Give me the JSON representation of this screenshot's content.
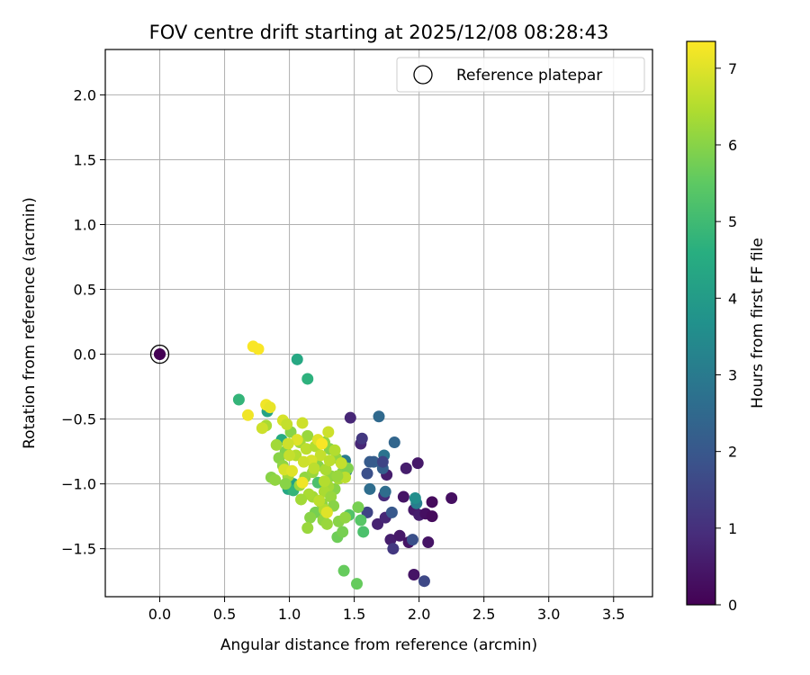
{
  "chart_data": {
    "type": "scatter",
    "title": "FOV centre drift starting at 2025/12/08 08:28:43",
    "xlabel": "Angular distance from reference (arcmin)",
    "ylabel": "Rotation from reference (arcmin)",
    "xlim": [
      -0.42,
      3.8
    ],
    "ylim": [
      -1.87,
      2.35
    ],
    "xticks": [
      0.0,
      0.5,
      1.0,
      1.5,
      2.0,
      2.5,
      3.0,
      3.5
    ],
    "yticks": [
      -1.5,
      -1.0,
      -0.5,
      0.0,
      0.5,
      1.0,
      1.5,
      2.0
    ],
    "grid": true,
    "legend": {
      "position": "top-right",
      "entries": [
        "Reference platepar"
      ]
    },
    "reference_point": {
      "x": 0.0,
      "y": 0.0,
      "hours": 0.0
    },
    "colorbar": {
      "label": "Hours from first FF file",
      "colormap": "viridis",
      "range": [
        0,
        7.35
      ],
      "ticks": [
        0,
        1,
        2,
        3,
        4,
        5,
        6,
        7
      ]
    },
    "points": [
      [
        1.55,
        -0.69,
        0.8
      ],
      [
        1.47,
        -0.49,
        0.8
      ],
      [
        1.75,
        -0.93,
        0.6
      ],
      [
        1.9,
        -0.88,
        0.6
      ],
      [
        1.99,
        -0.84,
        0.5
      ],
      [
        1.88,
        -1.1,
        0.4
      ],
      [
        1.96,
        -1.2,
        0.5
      ],
      [
        2.0,
        -1.24,
        0.6
      ],
      [
        2.05,
        -1.23,
        0.3
      ],
      [
        2.1,
        -1.14,
        0.2
      ],
      [
        2.1,
        -1.25,
        0.2
      ],
      [
        2.25,
        -1.11,
        0.3
      ],
      [
        1.68,
        -1.31,
        0.7
      ],
      [
        1.74,
        -1.26,
        0.8
      ],
      [
        1.78,
        -1.43,
        0.6
      ],
      [
        1.85,
        -1.4,
        0.5
      ],
      [
        1.92,
        -1.45,
        0.4
      ],
      [
        2.07,
        -1.45,
        0.4
      ],
      [
        1.96,
        -1.7,
        0.4
      ],
      [
        1.56,
        -0.65,
        1.2
      ],
      [
        1.73,
        -1.09,
        0.9
      ],
      [
        2.04,
        -1.75,
        1.6
      ],
      [
        1.8,
        -1.5,
        1.2
      ],
      [
        1.95,
        -1.43,
        1.8
      ],
      [
        1.6,
        -0.92,
        1.8
      ],
      [
        1.65,
        -0.83,
        2.2
      ],
      [
        1.62,
        -0.83,
        2.1
      ],
      [
        1.81,
        -0.68,
        2.4
      ],
      [
        1.69,
        -0.48,
        2.5
      ],
      [
        1.72,
        -0.88,
        2.2
      ],
      [
        1.73,
        -0.78,
        2.8
      ],
      [
        1.62,
        -1.04,
        2.6
      ],
      [
        1.74,
        -1.06,
        2.6
      ],
      [
        1.6,
        -1.22,
        1.5
      ],
      [
        1.79,
        -1.22,
        2.0
      ],
      [
        1.72,
        -0.83,
        1.5
      ],
      [
        1.98,
        -1.15,
        3.1
      ],
      [
        1.97,
        -1.11,
        3.6
      ],
      [
        1.43,
        -0.82,
        3.0
      ],
      [
        1.44,
        -0.9,
        2.9
      ],
      [
        0.0,
        0.0,
        0.1
      ],
      [
        1.06,
        -0.04,
        4.4
      ],
      [
        1.14,
        -0.19,
        4.7
      ],
      [
        0.61,
        -0.35,
        4.8
      ],
      [
        0.83,
        -0.44,
        4.2
      ],
      [
        0.94,
        -0.66,
        4.5
      ],
      [
        0.99,
        -1.04,
        4.4
      ],
      [
        1.03,
        -1.0,
        4.2
      ],
      [
        1.03,
        -1.05,
        4.8
      ],
      [
        1.22,
        -0.99,
        5.2
      ],
      [
        1.46,
        -1.24,
        5.3
      ],
      [
        1.57,
        -1.37,
        5.2
      ],
      [
        1.55,
        -1.28,
        5.4
      ],
      [
        1.42,
        -1.67,
        5.6
      ],
      [
        1.52,
        -1.77,
        5.6
      ],
      [
        1.53,
        -1.18,
        5.8
      ],
      [
        1.37,
        -1.41,
        5.7
      ],
      [
        1.41,
        -1.37,
        5.8
      ],
      [
        1.38,
        -1.29,
        6.0
      ],
      [
        1.43,
        -1.26,
        6.1
      ],
      [
        1.2,
        -1.22,
        5.8
      ],
      [
        1.16,
        -1.26,
        6.0
      ],
      [
        1.14,
        -1.34,
        6.2
      ],
      [
        1.26,
        -1.28,
        6.1
      ],
      [
        1.29,
        -1.31,
        6.2
      ],
      [
        1.18,
        -1.1,
        6.3
      ],
      [
        1.25,
        -1.15,
        6.1
      ],
      [
        1.35,
        -1.04,
        6.0
      ],
      [
        1.32,
        -0.94,
        6.1
      ],
      [
        1.38,
        -0.96,
        6.3
      ],
      [
        1.41,
        -0.91,
        6.0
      ],
      [
        1.45,
        -0.88,
        5.9
      ],
      [
        1.36,
        -0.8,
        6.1
      ],
      [
        1.31,
        -0.73,
        6.0
      ],
      [
        1.27,
        -0.68,
        6.1
      ],
      [
        1.14,
        -0.63,
        6.2
      ],
      [
        1.08,
        -0.68,
        6.3
      ],
      [
        1.01,
        -0.6,
        6.0
      ],
      [
        0.97,
        -0.75,
        5.9
      ],
      [
        0.92,
        -0.8,
        6.0
      ],
      [
        0.95,
        -0.86,
        6.1
      ],
      [
        0.99,
        -0.94,
        6.3
      ],
      [
        0.86,
        -0.95,
        6.0
      ],
      [
        0.89,
        -0.97,
        6.1
      ],
      [
        0.97,
        -1.0,
        6.0
      ],
      [
        1.08,
        -1.01,
        6.2
      ],
      [
        1.12,
        -0.95,
        6.1
      ],
      [
        1.18,
        -0.91,
        6.2
      ],
      [
        1.22,
        -0.86,
        6.0
      ],
      [
        1.28,
        -0.89,
        6.4
      ],
      [
        1.3,
        -1.02,
        6.3
      ],
      [
        1.27,
        -1.06,
        6.4
      ],
      [
        1.32,
        -1.1,
        6.2
      ],
      [
        1.34,
        -1.17,
        6.0
      ],
      [
        1.27,
        -1.2,
        6.5
      ],
      [
        1.23,
        -1.13,
        6.6
      ],
      [
        1.15,
        -1.08,
        6.4
      ],
      [
        1.09,
        -1.12,
        6.3
      ],
      [
        0.82,
        -0.55,
        6.4
      ],
      [
        0.9,
        -0.7,
        6.3
      ],
      [
        1.05,
        -0.78,
        6.5
      ],
      [
        1.13,
        -0.73,
        6.6
      ],
      [
        1.2,
        -0.71,
        6.5
      ],
      [
        1.24,
        -0.78,
        6.7
      ],
      [
        1.31,
        -0.82,
        6.6
      ],
      [
        1.4,
        -0.84,
        6.7
      ],
      [
        1.43,
        -0.95,
        6.6
      ],
      [
        1.3,
        -0.6,
        6.8
      ],
      [
        1.22,
        -0.66,
        7.0
      ],
      [
        1.17,
        -0.82,
        6.9
      ],
      [
        1.11,
        -0.83,
        6.8
      ],
      [
        1.06,
        -0.66,
        7.0
      ],
      [
        0.99,
        -0.69,
        6.8
      ],
      [
        1.0,
        -0.78,
        6.7
      ],
      [
        0.96,
        -0.89,
        6.9
      ],
      [
        1.1,
        -0.53,
        6.8
      ],
      [
        0.95,
        -0.51,
        6.9
      ],
      [
        0.98,
        -0.54,
        6.7
      ],
      [
        0.79,
        -0.57,
        6.8
      ],
      [
        0.82,
        -0.39,
        7.2
      ],
      [
        0.85,
        -0.41,
        7.1
      ],
      [
        0.68,
        -0.47,
        7.2
      ],
      [
        0.72,
        0.06,
        7.3
      ],
      [
        0.76,
        0.04,
        7.3
      ],
      [
        1.25,
        -0.69,
        7.3
      ],
      [
        1.1,
        -0.99,
        7.2
      ],
      [
        1.29,
        -1.22,
        7.0
      ],
      [
        1.27,
        -0.98,
        6.5
      ],
      [
        1.19,
        -0.88,
        6.6
      ],
      [
        1.37,
        -0.94,
        6.2
      ],
      [
        1.02,
        -0.9,
        7.0
      ],
      [
        1.35,
        -0.74,
        6.5
      ]
    ]
  }
}
